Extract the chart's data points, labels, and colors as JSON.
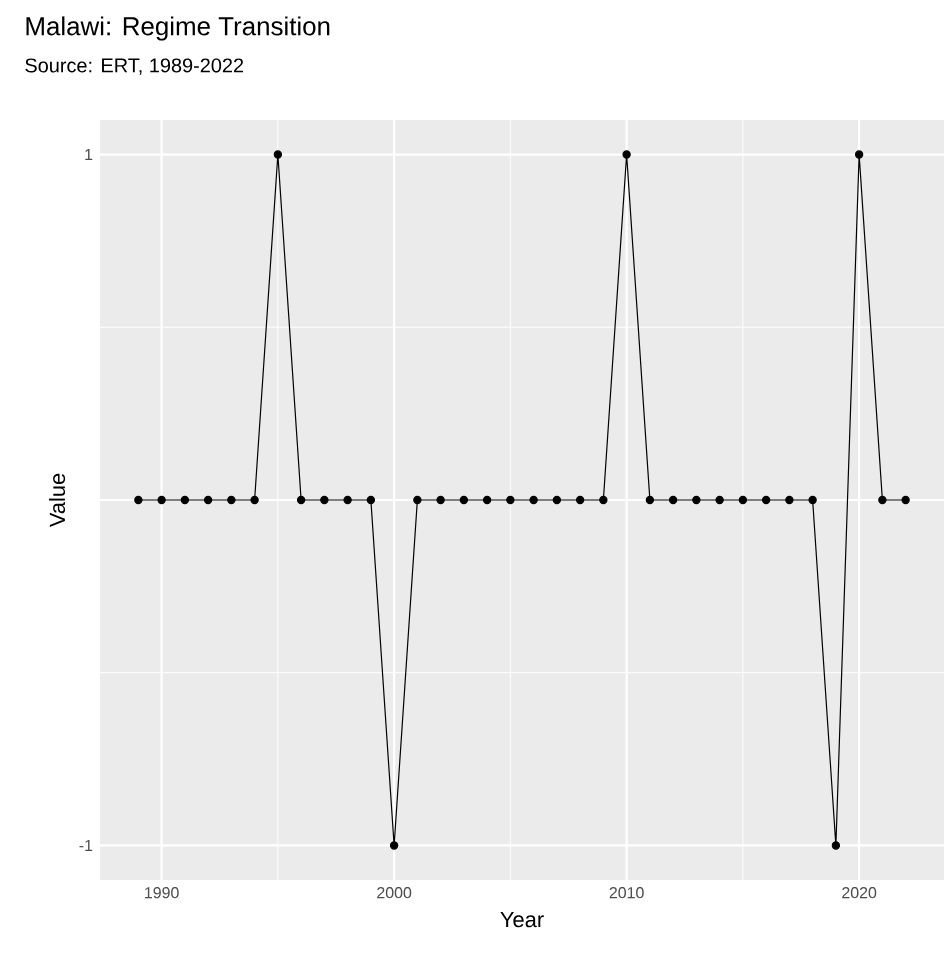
{
  "chart_data": {
    "type": "line",
    "title": "Malawi: Regime Transition",
    "subtitle": "Source: ERT, 1989-2022",
    "xlabel": "Year",
    "ylabel": "Value",
    "x": [
      1989,
      1990,
      1991,
      1992,
      1993,
      1994,
      1995,
      1996,
      1997,
      1998,
      1999,
      2000,
      2001,
      2002,
      2003,
      2004,
      2005,
      2006,
      2007,
      2008,
      2009,
      2010,
      2011,
      2012,
      2013,
      2014,
      2015,
      2016,
      2017,
      2018,
      2019,
      2020,
      2021,
      2022
    ],
    "series": [
      {
        "color": "#000000",
        "values": [
          0,
          0,
          0,
          0,
          0,
          0,
          1,
          0,
          0,
          0,
          0,
          -1,
          0,
          0,
          0,
          0,
          0,
          0,
          0,
          0,
          0,
          1,
          0,
          0,
          0,
          0,
          0,
          0,
          0,
          0,
          -1,
          1,
          0,
          0
        ]
      }
    ],
    "xlim": [
      1987.35,
      2023.65
    ],
    "ylim": [
      -1.1,
      1.1
    ],
    "xticks": [
      1990,
      2000,
      2010,
      2020
    ],
    "yticks": [
      -1,
      {
        "value": 0,
        "label": null
      },
      1
    ],
    "grid": true,
    "marker": "circle",
    "line_style": "solid"
  }
}
